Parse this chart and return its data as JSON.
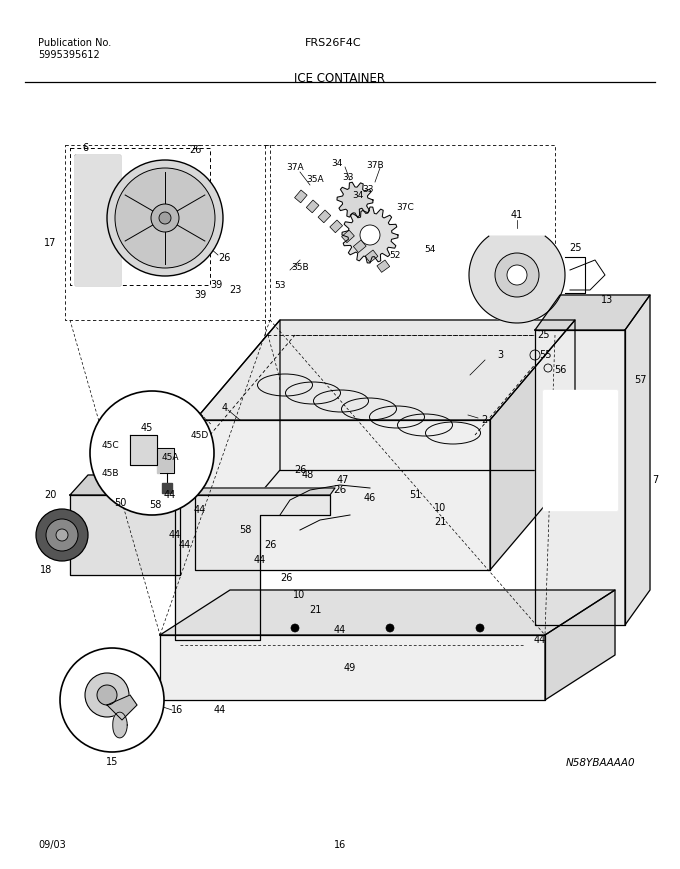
{
  "pub_label": "Publication No.",
  "pub_number": "5995395612",
  "model": "FRS26F4C",
  "section_title": "ICE CONTAINER",
  "date_code": "09/03",
  "page_number": "16",
  "diagram_code": "N58YBAAAA0",
  "bg_color": "#ffffff",
  "text_color": "#000000",
  "fig_width": 6.8,
  "fig_height": 8.69
}
